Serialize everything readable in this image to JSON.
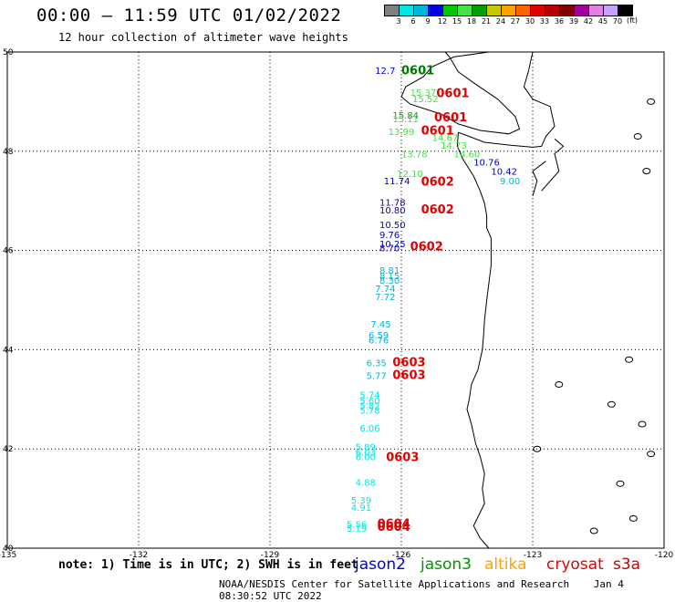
{
  "header": {
    "title": "00:00 – 11:59 UTC 01/02/2022",
    "subtitle": "12 hour collection of altimeter wave heights"
  },
  "scale": {
    "unit": "(ft)",
    "colors": [
      "#808080",
      "#00e5e5",
      "#00b4e0",
      "#0000e0",
      "#00c800",
      "#48e048",
      "#00a000",
      "#c8c800",
      "#ffa000",
      "#ff6400",
      "#e00000",
      "#b40000",
      "#800000",
      "#a000a0",
      "#e080e0",
      "#c8a0ff",
      "#000000"
    ],
    "labels": [
      "3",
      "6",
      "9",
      "12",
      "15",
      "18",
      "21",
      "24",
      "27",
      "30",
      "33",
      "36",
      "39",
      "42",
      "45",
      "70"
    ]
  },
  "map": {
    "lon_ticks": [
      "-135",
      "-132",
      "-129",
      "-126",
      "-123",
      "-120"
    ],
    "lat_ticks": [
      "50",
      "48",
      "46",
      "44",
      "42",
      "40"
    ],
    "grid": true
  },
  "observations": [
    {
      "text": "0601",
      "lon": -126.0,
      "lat": 49.55,
      "color": "#007800",
      "big": true
    },
    {
      "text": "12.7",
      "lon": -126.6,
      "lat": 49.56,
      "color": "#0000c8",
      "big": false
    },
    {
      "text": "0601",
      "lon": -125.2,
      "lat": 49.09,
      "color": "#e00000",
      "big": true
    },
    {
      "text": "15.37",
      "lon": -125.8,
      "lat": 49.12,
      "color": "#48e048",
      "big": false
    },
    {
      "text": "15.52",
      "lon": -125.75,
      "lat": 48.99,
      "color": "#48e048",
      "big": false
    },
    {
      "text": "0601",
      "lon": -125.25,
      "lat": 48.6,
      "color": "#e00000",
      "big": true
    },
    {
      "text": "15.84",
      "lon": -126.2,
      "lat": 48.66,
      "color": "#00a000",
      "big": false
    },
    {
      "text": "15.11",
      "lon": -126.2,
      "lat": 48.58,
      "color": "#48e048",
      "big": false
    },
    {
      "text": "0601",
      "lon": -125.55,
      "lat": 48.34,
      "color": "#e00000",
      "big": true
    },
    {
      "text": "13.99",
      "lon": -126.3,
      "lat": 48.33,
      "color": "#48e048",
      "big": false
    },
    {
      "text": "14.67",
      "lon": -125.3,
      "lat": 48.21,
      "color": "#48e048",
      "big": false
    },
    {
      "text": "14.73",
      "lon": -125.1,
      "lat": 48.05,
      "color": "#48e048",
      "big": false
    },
    {
      "text": "13.78",
      "lon": -126.0,
      "lat": 47.88,
      "color": "#48e048",
      "big": false
    },
    {
      "text": "14.60",
      "lon": -124.8,
      "lat": 47.88,
      "color": "#48e048",
      "big": false
    },
    {
      "text": "10.76",
      "lon": -124.35,
      "lat": 47.71,
      "color": "#0000c8",
      "big": false
    },
    {
      "text": "10.42",
      "lon": -123.95,
      "lat": 47.53,
      "color": "#0000c8",
      "big": false
    },
    {
      "text": "9.00",
      "lon": -123.75,
      "lat": 47.33,
      "color": "#00b4e0",
      "big": false
    },
    {
      "text": "12.10",
      "lon": -126.1,
      "lat": 47.48,
      "color": "#48e048",
      "big": false
    },
    {
      "text": "11.74",
      "lon": -126.4,
      "lat": 47.33,
      "color": "#0000c8",
      "big": false
    },
    {
      "text": "0602",
      "lon": -125.55,
      "lat": 47.31,
      "color": "#e00000",
      "big": true
    },
    {
      "text": "11.78",
      "lon": -126.5,
      "lat": 46.9,
      "color": "#0000c8",
      "big": false
    },
    {
      "text": "10.80",
      "lon": -126.5,
      "lat": 46.75,
      "color": "#0000c8",
      "big": false
    },
    {
      "text": "0602",
      "lon": -125.55,
      "lat": 46.75,
      "color": "#e00000",
      "big": true
    },
    {
      "text": "10.50",
      "lon": -126.5,
      "lat": 46.45,
      "color": "#0000c8",
      "big": false
    },
    {
      "text": "9.76",
      "lon": -126.5,
      "lat": 46.25,
      "color": "#0000c8",
      "big": false
    },
    {
      "text": "10.25",
      "lon": -126.5,
      "lat": 46.07,
      "color": "#0000c8",
      "big": false
    },
    {
      "text": "8.70",
      "lon": -126.5,
      "lat": 45.98,
      "color": "#0000c8",
      "big": false
    },
    {
      "text": "0602",
      "lon": -125.8,
      "lat": 46.0,
      "color": "#e00000",
      "big": true
    },
    {
      "text": "8.81",
      "lon": -126.5,
      "lat": 45.53,
      "color": "#00b4e0",
      "big": false
    },
    {
      "text": "8.15",
      "lon": -126.5,
      "lat": 45.42,
      "color": "#00b4e0",
      "big": false
    },
    {
      "text": "8.30",
      "lon": -126.5,
      "lat": 45.33,
      "color": "#00b4e0",
      "big": false
    },
    {
      "text": "7.74",
      "lon": -126.6,
      "lat": 45.17,
      "color": "#00b4e0",
      "big": false
    },
    {
      "text": "7.72",
      "lon": -126.6,
      "lat": 45.0,
      "color": "#00b4e0",
      "big": false
    },
    {
      "text": "7.45",
      "lon": -126.7,
      "lat": 44.45,
      "color": "#00b4e0",
      "big": false
    },
    {
      "text": "6.59",
      "lon": -126.75,
      "lat": 44.23,
      "color": "#00b4e0",
      "big": false
    },
    {
      "text": "6.76",
      "lon": -126.75,
      "lat": 44.13,
      "color": "#00b4e0",
      "big": false
    },
    {
      "text": "6.35",
      "lon": -126.8,
      "lat": 43.67,
      "color": "#00b4e0",
      "big": false
    },
    {
      "text": "0603",
      "lon": -126.2,
      "lat": 43.67,
      "color": "#e00000",
      "big": true
    },
    {
      "text": "5.77",
      "lon": -126.8,
      "lat": 43.41,
      "color": "#00b4e0",
      "big": false
    },
    {
      "text": "0603",
      "lon": -126.2,
      "lat": 43.41,
      "color": "#e00000",
      "big": true
    },
    {
      "text": "5.74",
      "lon": -126.95,
      "lat": 43.02,
      "color": "#00e5e5",
      "big": false
    },
    {
      "text": "5.60",
      "lon": -126.95,
      "lat": 42.9,
      "color": "#00e5e5",
      "big": false
    },
    {
      "text": "5.82",
      "lon": -126.95,
      "lat": 42.8,
      "color": "#00e5e5",
      "big": false
    },
    {
      "text": "5.78",
      "lon": -126.95,
      "lat": 42.71,
      "color": "#00e5e5",
      "big": false
    },
    {
      "text": "6.06",
      "lon": -126.95,
      "lat": 42.35,
      "color": "#00e5e5",
      "big": false
    },
    {
      "text": "5.89",
      "lon": -127.05,
      "lat": 41.98,
      "color": "#00e5e5",
      "big": false
    },
    {
      "text": "6.03",
      "lon": -127.05,
      "lat": 41.87,
      "color": "#00e5e5",
      "big": false
    },
    {
      "text": "6.00",
      "lon": -127.05,
      "lat": 41.77,
      "color": "#00e5e5",
      "big": false
    },
    {
      "text": "0603",
      "lon": -126.35,
      "lat": 41.76,
      "color": "#e00000",
      "big": true
    },
    {
      "text": "4.88",
      "lon": -127.05,
      "lat": 41.26,
      "color": "#00e5e5",
      "big": false
    },
    {
      "text": "5.39",
      "lon": -127.15,
      "lat": 40.9,
      "color": "#00e5e5",
      "big": false
    },
    {
      "text": "4.91",
      "lon": -127.15,
      "lat": 40.75,
      "color": "#00e5e5",
      "big": false
    },
    {
      "text": "5.56",
      "lon": -127.25,
      "lat": 40.41,
      "color": "#00e5e5",
      "big": false
    },
    {
      "text": "5.19",
      "lon": -127.25,
      "lat": 40.33,
      "color": "#00e5e5",
      "big": false
    },
    {
      "text": "0604",
      "lon": -126.55,
      "lat": 40.41,
      "color": "#e00000",
      "big": true
    },
    {
      "text": "0604",
      "lon": -126.55,
      "lat": 40.35,
      "color": "#e00000",
      "big": true
    }
  ],
  "footer": {
    "note": "note: 1) Time is in UTC; 2) SWH is in feet",
    "satellites": [
      {
        "name": "jason2",
        "color": "#0000e0"
      },
      {
        "name": "jason3",
        "color": "#009600"
      },
      {
        "name": "altika",
        "color": "#ffa000"
      },
      {
        "name": "cryosat",
        "color": "#e00000"
      },
      {
        "name": "s3a",
        "color": "#c80000"
      }
    ],
    "credit_org": "NOAA/NESDIS Center for Satellite Applications and Research",
    "credit_date": "Jan  4 08:30:52 UTC 2022"
  }
}
